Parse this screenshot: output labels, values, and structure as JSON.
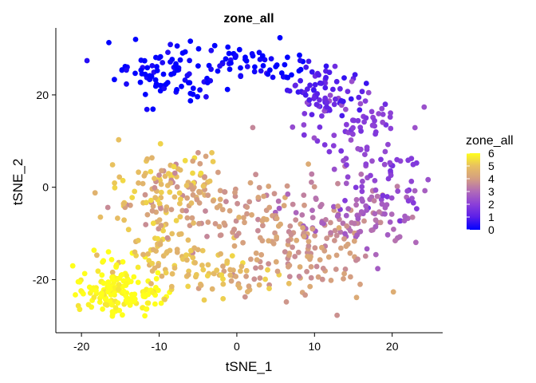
{
  "chart_data": {
    "type": "scatter",
    "title": "zone_all",
    "xlabel": "tSNE_1",
    "ylabel": "tSNE_2",
    "xlim": [
      -23.3,
      26.5
    ],
    "ylim": [
      -31.5,
      34.5
    ],
    "x_ticks": [
      -20,
      -10,
      0,
      10,
      20
    ],
    "y_ticks": [
      -20,
      0,
      20
    ],
    "grid": false,
    "legend": {
      "title": "zone_all",
      "position": "right",
      "type": "colorbar",
      "range": [
        0,
        6
      ],
      "labels": [
        "6",
        "5",
        "4",
        "3",
        "2",
        "1",
        "0"
      ],
      "colors": [
        "#0000FF",
        "#5A1FE8",
        "#8B3FD8",
        "#B06AB8",
        "#D49E82",
        "#E8C060",
        "#FFFF1A"
      ]
    },
    "clusters": [
      {
        "zone": 0,
        "cx": -8,
        "cy": 24.5,
        "sx": 3.5,
        "sy": 3.5,
        "n": 95
      },
      {
        "zone": 0,
        "cx": 3.5,
        "cy": 26.5,
        "sx": 3.5,
        "sy": 1.8,
        "n": 50
      },
      {
        "zone": 1,
        "cx": 11,
        "cy": 21,
        "sx": 3,
        "sy": 3,
        "n": 70
      },
      {
        "zone": 2,
        "cx": 16,
        "cy": 14,
        "sx": 3.5,
        "sy": 3.5,
        "n": 65
      },
      {
        "zone": 2,
        "cx": 19,
        "cy": 3,
        "sx": 3,
        "sy": 4,
        "n": 55
      },
      {
        "zone": 3,
        "cx": 16,
        "cy": -6,
        "sx": 4.5,
        "sy": 4,
        "n": 100
      },
      {
        "zone": 4,
        "cx": 7.5,
        "cy": -12,
        "sx": 5,
        "sy": 6,
        "n": 170
      },
      {
        "zone": 4,
        "cx": -4,
        "cy": -2,
        "sx": 4.5,
        "sy": 4,
        "n": 85
      },
      {
        "zone": 5,
        "cx": -10,
        "cy": 0,
        "sx": 4,
        "sy": 4,
        "n": 80
      },
      {
        "zone": 5,
        "cx": -8,
        "cy": -15,
        "sx": 3.5,
        "sy": 4,
        "n": 85
      },
      {
        "zone": 5,
        "cx": 0,
        "cy": -20,
        "sx": 3,
        "sy": 2,
        "n": 30
      },
      {
        "zone": 6,
        "cx": -16,
        "cy": -22,
        "sx": 2.5,
        "sy": 3.2,
        "n": 140
      },
      {
        "zone": 6,
        "cx": -11.5,
        "cy": -24,
        "sx": 1.8,
        "sy": 1.5,
        "n": 25
      }
    ]
  }
}
